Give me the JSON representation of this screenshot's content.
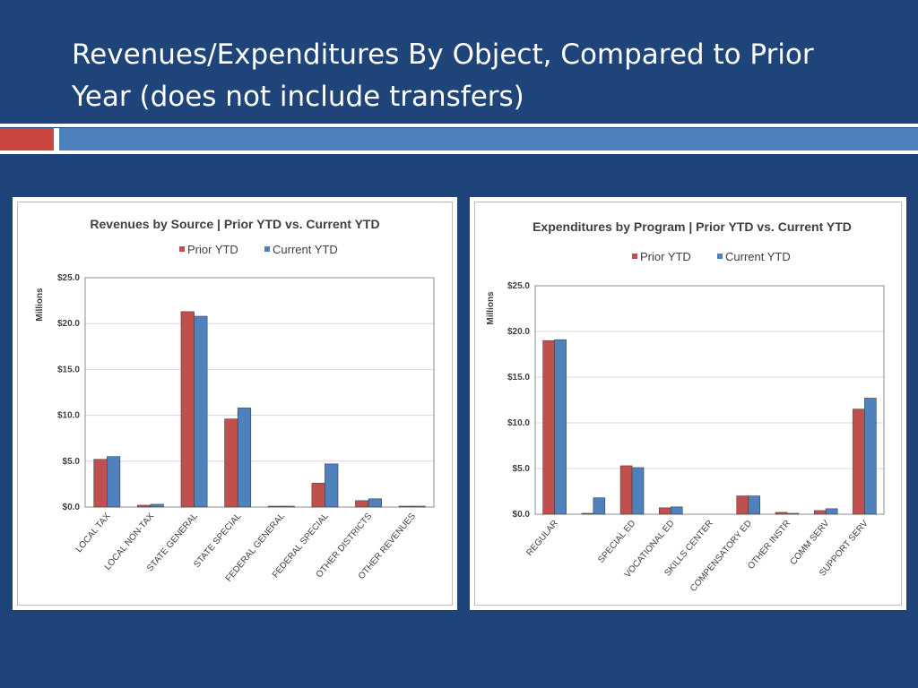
{
  "slide": {
    "title": "Revenues/Expenditures By Object, Compared to Prior Year (does not include transfers)"
  },
  "colors": {
    "background": "#1f4479",
    "accent_red": "#c9473f",
    "accent_blue": "#4f81bd",
    "prior": "#c0504d",
    "current": "#4f81bd"
  },
  "chart_data": [
    {
      "type": "bar",
      "title": "Revenues by Source | Prior YTD vs. Current YTD",
      "ylabel": "Millions",
      "ylim": [
        0,
        25
      ],
      "yticks": [
        "$0.0",
        "$5.0",
        "$10.0",
        "$15.0",
        "$20.0",
        "$25.0"
      ],
      "legend_position": "top",
      "grid": true,
      "categories": [
        "LOCAL TAX",
        "LOCAL NON-TAX",
        "STATE GENERAL",
        "STATE SPECIAL",
        "FEDERAL GENERAL",
        "FEDERAL SPECIAL",
        "OTHER DISTRICTS",
        "OTHER REVENUES"
      ],
      "series": [
        {
          "name": "Prior YTD",
          "color": "#c0504d",
          "values": [
            5.2,
            0.2,
            21.3,
            9.6,
            0.1,
            2.6,
            0.7,
            0.1
          ]
        },
        {
          "name": "Current YTD",
          "color": "#4f81bd",
          "values": [
            5.5,
            0.3,
            20.8,
            10.8,
            0.1,
            4.7,
            0.9,
            0.1
          ]
        }
      ]
    },
    {
      "type": "bar",
      "title": "Expenditures by Program | Prior YTD vs. Current YTD",
      "ylabel": "Millions",
      "ylim": [
        0,
        25
      ],
      "yticks": [
        "$0.0",
        "$5.0",
        "$10.0",
        "$15.0",
        "$20.0",
        "$25.0"
      ],
      "legend_position": "top",
      "grid": true,
      "categories": [
        "REGULAR",
        "",
        "SPECIAL ED",
        "VOCATIONAL ED",
        "SKILLS CENTER",
        "COMPENSATORY ED",
        "OTHER INSTR",
        "COMM SERV",
        "SUPPORT SERV"
      ],
      "series": [
        {
          "name": "Prior YTD",
          "color": "#c0504d",
          "values": [
            19.0,
            0.1,
            5.3,
            0.7,
            0.0,
            2.0,
            0.2,
            0.4,
            11.5
          ]
        },
        {
          "name": "Current YTD",
          "color": "#4f81bd",
          "values": [
            19.1,
            1.8,
            5.1,
            0.8,
            0.0,
            2.0,
            0.1,
            0.6,
            12.7
          ]
        }
      ]
    }
  ]
}
